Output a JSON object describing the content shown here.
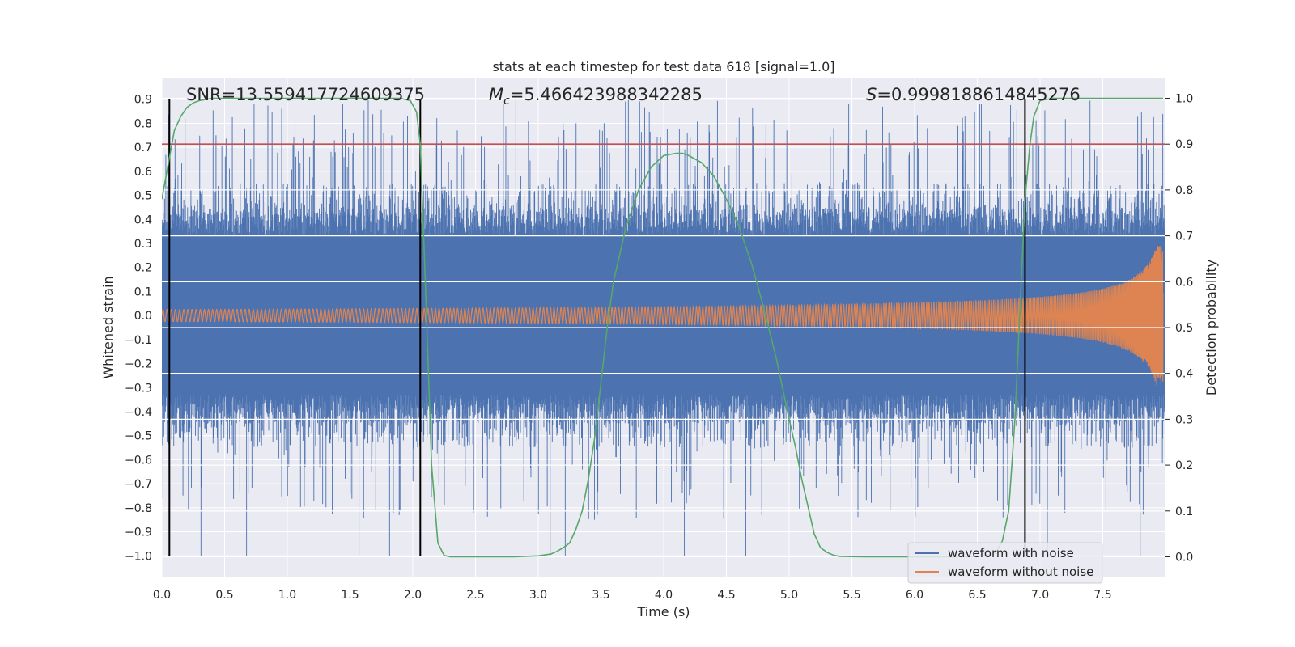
{
  "chart_data": {
    "type": "line",
    "title": "stats at each timestep for test data 618 [signal=1.0]",
    "xlabel": "Time (s)",
    "ylabel_left": "Whitened strain",
    "ylabel_right": "Detection probability",
    "xlim": [
      0.0,
      8.0
    ],
    "ylim_left": [
      -1.09,
      0.99
    ],
    "ylim_right": [
      -0.045,
      1.045
    ],
    "x_ticks": [
      "0.0",
      "0.5",
      "1.0",
      "1.5",
      "2.0",
      "2.5",
      "3.0",
      "3.5",
      "4.0",
      "4.5",
      "5.0",
      "5.5",
      "6.0",
      "6.5",
      "7.0",
      "7.5"
    ],
    "y_ticks_left": [
      "0.9",
      "0.8",
      "0.7",
      "0.6",
      "0.5",
      "0.4",
      "0.3",
      "0.2",
      "0.1",
      "0.0",
      "−0.1",
      "−0.2",
      "−0.3",
      "−0.4",
      "−0.5",
      "−0.6",
      "−0.7",
      "−0.8",
      "−0.9",
      "−1.0"
    ],
    "y_ticks_right": [
      "1.0",
      "0.9",
      "0.8",
      "0.7",
      "0.6",
      "0.5",
      "0.4",
      "0.3",
      "0.2",
      "0.1",
      "0.0"
    ],
    "grid": true,
    "legend_position": "bottom-right",
    "annotations": {
      "snr": "SNR=13.559417724609375",
      "mc_symbol": "M",
      "mc_sub": "c",
      "mc_value": "=5.466423988342285",
      "s_symbol": "S",
      "s_value": "=0.9998188614845276"
    },
    "threshold_prob": 0.9,
    "vlines_x": [
      0.06,
      2.06,
      6.88
    ],
    "series": [
      {
        "name": "waveform with noise",
        "color": "#4c72b0",
        "envelope_core": 0.33,
        "peak_range": [
          -1.0,
          0.9
        ]
      },
      {
        "name": "waveform without noise",
        "color": "#dd8452",
        "amplitude_start": 0.025,
        "amplitude_end": 0.27
      },
      {
        "name": "detection probability",
        "color": "#55a868",
        "x": [
          0.0,
          0.06,
          0.1,
          0.15,
          0.2,
          0.25,
          0.3,
          0.4,
          0.6,
          1.0,
          1.5,
          1.9,
          1.98,
          2.03,
          2.06,
          2.1,
          2.15,
          2.2,
          2.25,
          2.3,
          2.5,
          2.8,
          3.0,
          3.1,
          3.15,
          3.2,
          3.25,
          3.3,
          3.35,
          3.4,
          3.45,
          3.5,
          3.55,
          3.6,
          3.7,
          3.8,
          3.9,
          4.0,
          4.1,
          4.15,
          4.2,
          4.3,
          4.4,
          4.5,
          4.6,
          4.7,
          4.8,
          4.9,
          5.0,
          5.05,
          5.1,
          5.15,
          5.2,
          5.25,
          5.3,
          5.35,
          5.4,
          5.6,
          6.0,
          6.4,
          6.6,
          6.65,
          6.7,
          6.75,
          6.8,
          6.85,
          6.88,
          6.92,
          6.95,
          7.0,
          7.1,
          7.5,
          7.98
        ],
        "y": [
          0.78,
          0.87,
          0.93,
          0.96,
          0.98,
          0.99,
          0.995,
          1.0,
          1.0,
          1.0,
          1.0,
          1.0,
          0.995,
          0.97,
          0.9,
          0.6,
          0.2,
          0.03,
          0.003,
          0.0,
          0.0,
          0.0,
          0.002,
          0.006,
          0.012,
          0.02,
          0.03,
          0.06,
          0.1,
          0.17,
          0.26,
          0.38,
          0.5,
          0.6,
          0.72,
          0.8,
          0.85,
          0.875,
          0.88,
          0.88,
          0.875,
          0.86,
          0.83,
          0.78,
          0.72,
          0.64,
          0.54,
          0.43,
          0.3,
          0.24,
          0.17,
          0.11,
          0.05,
          0.02,
          0.01,
          0.004,
          0.001,
          0.0,
          0.0,
          0.0,
          0.003,
          0.01,
          0.035,
          0.1,
          0.3,
          0.6,
          0.78,
          0.9,
          0.96,
          0.995,
          1.0,
          1.0,
          1.0
        ]
      }
    ],
    "legend": [
      "waveform with noise",
      "waveform without noise"
    ],
    "colors": {
      "background": "#eaeaf2",
      "grid": "#ffffff",
      "threshold": "#c44e52",
      "vline": "#000000"
    }
  }
}
